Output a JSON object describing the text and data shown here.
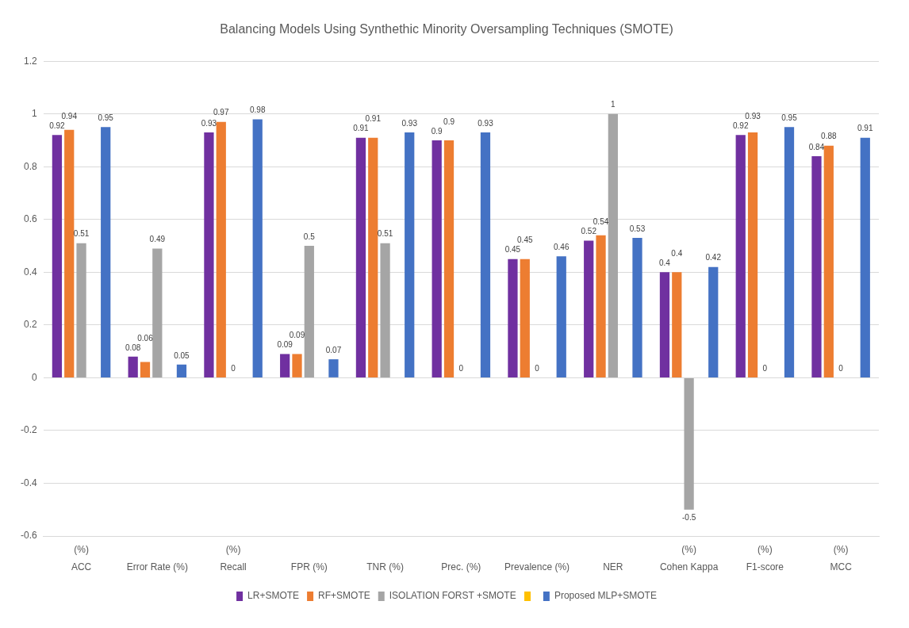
{
  "chart_data": {
    "type": "bar",
    "title": "Balancing Models Using Synthethic Minority Oversampling Techniques (SMOTE)",
    "categories": [
      "(%)\nACC",
      "Error Rate (%)",
      "(%)\nRecall",
      "FPR (%)",
      "TNR (%)",
      "Prec. (%)",
      "Prevalence (%)",
      "NER",
      "(%)\nCohen Kappa",
      "(%)\nF1-score",
      "(%)\nMCC"
    ],
    "series": [
      {
        "name": "LR+SMOTE",
        "color": "#7030a0",
        "values": [
          0.92,
          0.08,
          0.93,
          0.09,
          0.91,
          0.9,
          0.45,
          0.52,
          0.4,
          0.92,
          0.84
        ]
      },
      {
        "name": "RF+SMOTE",
        "color": "#ed7d31",
        "values": [
          0.94,
          0.06,
          0.97,
          0.09,
          0.91,
          0.9,
          0.45,
          0.54,
          0.4,
          0.93,
          0.88
        ]
      },
      {
        "name": "ISOLATION FORST +SMOTE",
        "color": "#a5a5a5",
        "values": [
          0.51,
          0.49,
          0,
          0.5,
          0.51,
          0,
          0,
          1,
          -0.5,
          0,
          0
        ]
      },
      {
        "color": "#ffc000",
        "values": [
          null,
          null,
          null,
          null,
          null,
          null,
          null,
          null,
          null,
          null,
          null
        ]
      },
      {
        "name": "Proposed MLP+SMOTE",
        "color": "#4472c4",
        "values": [
          0.95,
          0.05,
          0.98,
          0.07,
          0.93,
          0.93,
          0.46,
          0.53,
          0.42,
          0.95,
          0.91
        ]
      }
    ],
    "ylim": [
      -0.6,
      1.2
    ],
    "yticks": [
      -0.6,
      -0.4,
      -0.2,
      0,
      0.2,
      0.4,
      0.6,
      0.8,
      1,
      1.2
    ],
    "data_labels": true,
    "grid": "y",
    "legend": "bottom"
  }
}
